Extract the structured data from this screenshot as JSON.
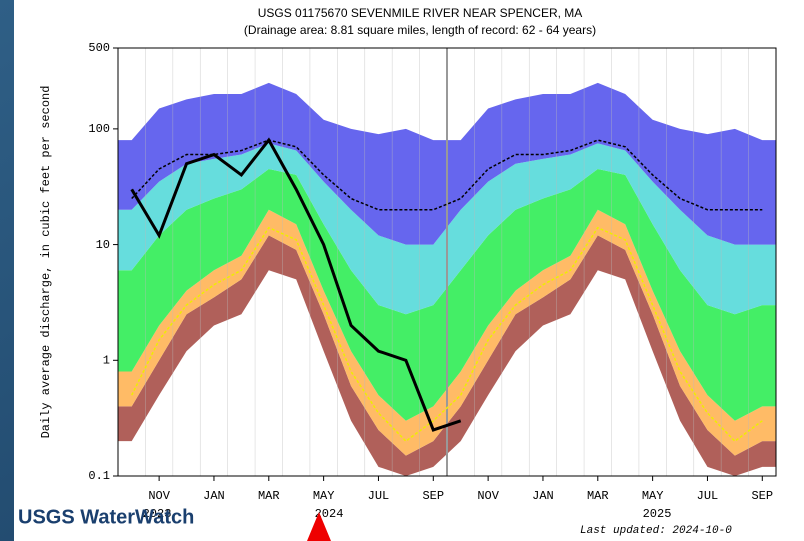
{
  "chart_data": {
    "type": "area",
    "title": "USGS 01175670 SEVENMILE RIVER NEAR SPENCER, MA",
    "subtitle": "(Drainage area: 8.81 square miles, length of record: 62 - 64 years)",
    "y_label": "Daily average discharge, in cubic feet per second",
    "categories": [
      null,
      "NOV",
      null,
      "JAN",
      null,
      "MAR",
      null,
      "MAY",
      null,
      "JUL",
      null,
      "SEP",
      null,
      "NOV",
      null,
      "JAN",
      null,
      "MAR",
      null,
      "MAY",
      null,
      "JUL",
      null,
      "SEP"
    ],
    "years": [
      "2023",
      "2024",
      "2025"
    ],
    "log_scale": true,
    "ylim": [
      0.1,
      500
    ],
    "yticks": [
      0.1,
      1,
      10,
      100,
      500
    ],
    "series": [
      {
        "color": "#ffffff",
        "values": [
          0.2,
          0.5,
          1.2,
          2,
          2.5,
          6,
          5,
          1.2,
          0.3,
          0.12,
          0.1,
          0.12,
          0.2,
          0.5,
          1.2,
          2,
          2.5,
          6,
          5,
          1.2,
          0.3,
          0.12,
          0.1,
          0.12
        ]
      },
      {
        "color": "#b0605a",
        "values": [
          0.4,
          1,
          2.5,
          3.5,
          5,
          12,
          9,
          2.5,
          0.6,
          0.25,
          0.15,
          0.2,
          0.4,
          1,
          2.5,
          3.5,
          5,
          12,
          9,
          2.5,
          0.6,
          0.25,
          0.15,
          0.2
        ]
      },
      {
        "color": "#ffbb66",
        "values": [
          0.8,
          2,
          4,
          6,
          8,
          20,
          15,
          4,
          1.2,
          0.5,
          0.3,
          0.4,
          0.8,
          2,
          4,
          6,
          8,
          20,
          15,
          4,
          1.2,
          0.5,
          0.3,
          0.4
        ]
      },
      {
        "color": "#44ee66",
        "values": [
          6,
          12,
          20,
          25,
          30,
          45,
          40,
          15,
          6,
          3,
          2.5,
          3,
          6,
          12,
          20,
          25,
          30,
          45,
          40,
          15,
          6,
          3,
          2.5,
          3
        ]
      },
      {
        "color": "#66dddd",
        "values": [
          20,
          35,
          50,
          55,
          60,
          75,
          65,
          35,
          20,
          12,
          10,
          10,
          20,
          35,
          50,
          55,
          60,
          75,
          65,
          35,
          20,
          12,
          10,
          10
        ]
      },
      {
        "color": "#6666ee",
        "values": [
          80,
          150,
          180,
          200,
          200,
          250,
          200,
          120,
          100,
          90,
          100,
          80,
          80,
          150,
          180,
          200,
          200,
          250,
          200,
          120,
          100,
          90,
          100,
          80
        ]
      }
    ],
    "lines": [
      {
        "color": "#eeee00",
        "dashed": true,
        "values": [
          0.5,
          1.5,
          3,
          4.5,
          6,
          14,
          11,
          3,
          0.8,
          0.35,
          0.2,
          0.3,
          0.5,
          1.5,
          3,
          4.5,
          6,
          14,
          11,
          3,
          0.8,
          0.35,
          0.2,
          0.3
        ]
      },
      {
        "color": "#000000",
        "dashed": true,
        "values": [
          25,
          45,
          60,
          60,
          65,
          80,
          70,
          40,
          25,
          20,
          20,
          20,
          25,
          45,
          60,
          60,
          65,
          80,
          70,
          40,
          25,
          20,
          20,
          20
        ]
      },
      {
        "color": "#000000",
        "dashed": false,
        "values": [
          30,
          12,
          50,
          60,
          40,
          80,
          30,
          10,
          2,
          1.2,
          1.0,
          0.25,
          0.3,
          null,
          null,
          null,
          null,
          null,
          null,
          null,
          null,
          null,
          null,
          null
        ]
      }
    ],
    "logo": "USGS WaterWatch",
    "updated": "Last updated: 2024-10-0"
  }
}
